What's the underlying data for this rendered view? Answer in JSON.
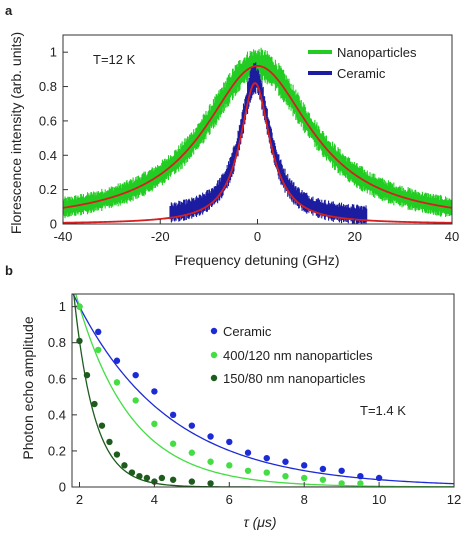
{
  "panels": [
    {
      "label": "a"
    },
    {
      "label": "b"
    }
  ],
  "chart_data": [
    {
      "type": "line",
      "panel": "a",
      "xlabel": "Frequency detuning (GHz)",
      "ylabel": "Florescence intensity (arb. units)",
      "xlim": [
        -40,
        40
      ],
      "ylim": [
        0,
        1.1
      ],
      "xticks": [
        -40,
        -20,
        0,
        20,
        40
      ],
      "yticks": [
        0,
        0.2,
        0.4,
        0.6,
        0.8,
        1
      ],
      "annotation": "T=12 K",
      "legend": {
        "position": "top-right",
        "entries": [
          "Nanoparticles",
          "Ceramic"
        ]
      },
      "series": [
        {
          "name": "Nanoparticles",
          "kind": "noisy-data",
          "color": "#22cc22",
          "x_range": [
            -40,
            40
          ],
          "shape": "lorentzian",
          "center": 0,
          "fwhm": 27,
          "peak": 0.93,
          "noise": 0.05
        },
        {
          "name": "Ceramic",
          "kind": "noisy-data",
          "color": "#1c1ca0",
          "x_range": [
            -18,
            22.5
          ],
          "shape": "lorentzian",
          "center": -0.5,
          "fwhm": 7.5,
          "peak": 0.82,
          "offset": 0.03,
          "noise": 0.05
        },
        {
          "name": "Nanoparticles fit",
          "kind": "fit",
          "color": "#d42020",
          "x_range": [
            -40,
            40
          ],
          "shape": "lorentzian",
          "center": 0,
          "fwhm": 27,
          "peak": 0.92
        },
        {
          "name": "Ceramic fit",
          "kind": "fit",
          "color": "#d42020",
          "x_range": [
            -40,
            40
          ],
          "shape": "lorentzian",
          "center": -0.5,
          "fwhm": 7.5,
          "peak": 0.82
        }
      ]
    },
    {
      "type": "scatter",
      "panel": "b",
      "xlabel": "τ (μs)",
      "ylabel": "Photon echo amplitude",
      "xlim": [
        1.8,
        12
      ],
      "ylim": [
        0,
        1.07
      ],
      "xticks": [
        2,
        4,
        6,
        8,
        10,
        12
      ],
      "yticks": [
        0,
        0.2,
        0.4,
        0.6,
        0.8,
        1
      ],
      "annotation": "T=1.4 K",
      "legend": {
        "position": "top-right",
        "entries": [
          "Ceramic",
          "400/120 nm nanoparticles",
          "150/80 nm nanoparticles"
        ]
      },
      "series": [
        {
          "name": "Ceramic",
          "color": "#1c2bd6",
          "points": [
            [
              2.0,
              1.0
            ],
            [
              2.5,
              0.86
            ],
            [
              3.0,
              0.7
            ],
            [
              3.5,
              0.62
            ],
            [
              4.0,
              0.53
            ],
            [
              4.5,
              0.4
            ],
            [
              5.0,
              0.34
            ],
            [
              5.5,
              0.28
            ],
            [
              6.0,
              0.25
            ],
            [
              6.5,
              0.19
            ],
            [
              7.0,
              0.16
            ],
            [
              7.5,
              0.14
            ],
            [
              8.0,
              0.12
            ],
            [
              8.5,
              0.1
            ],
            [
              9.0,
              0.09
            ],
            [
              9.5,
              0.06
            ],
            [
              10.0,
              0.05
            ]
          ],
          "fit": {
            "x_range": [
              1.8,
              12
            ],
            "x0": 2.0,
            "amplitude": 1.0,
            "decay": 2.5
          }
        },
        {
          "name": "400/120 nm nanoparticles",
          "color": "#44dd44",
          "points": [
            [
              2.0,
              1.0
            ],
            [
              2.5,
              0.76
            ],
            [
              3.0,
              0.58
            ],
            [
              3.5,
              0.48
            ],
            [
              4.0,
              0.35
            ],
            [
              4.5,
              0.24
            ],
            [
              5.0,
              0.19
            ],
            [
              5.5,
              0.14
            ],
            [
              6.0,
              0.12
            ],
            [
              6.5,
              0.09
            ],
            [
              7.0,
              0.08
            ],
            [
              7.5,
              0.06
            ],
            [
              8.0,
              0.05
            ],
            [
              8.5,
              0.04
            ],
            [
              9.0,
              0.02
            ],
            [
              9.5,
              0.02
            ]
          ],
          "fit": {
            "x_range": [
              1.8,
              12
            ],
            "x0": 2.0,
            "amplitude": 1.0,
            "decay": 1.45
          }
        },
        {
          "name": "150/80 nm nanoparticles",
          "color": "#1e5c1e",
          "points": [
            [
              2.0,
              0.81
            ],
            [
              2.2,
              0.62
            ],
            [
              2.4,
              0.46
            ],
            [
              2.6,
              0.34
            ],
            [
              2.8,
              0.25
            ],
            [
              3.0,
              0.18
            ],
            [
              3.2,
              0.12
            ],
            [
              3.4,
              0.08
            ],
            [
              3.6,
              0.06
            ],
            [
              3.8,
              0.05
            ],
            [
              4.0,
              0.03
            ],
            [
              4.2,
              0.05
            ],
            [
              4.5,
              0.04
            ],
            [
              5.0,
              0.03
            ],
            [
              5.5,
              0.02
            ]
          ],
          "fit": {
            "x_range": [
              1.8,
              12
            ],
            "x0": 2.0,
            "amplitude": 0.81,
            "decay": 0.55
          }
        }
      ]
    }
  ]
}
